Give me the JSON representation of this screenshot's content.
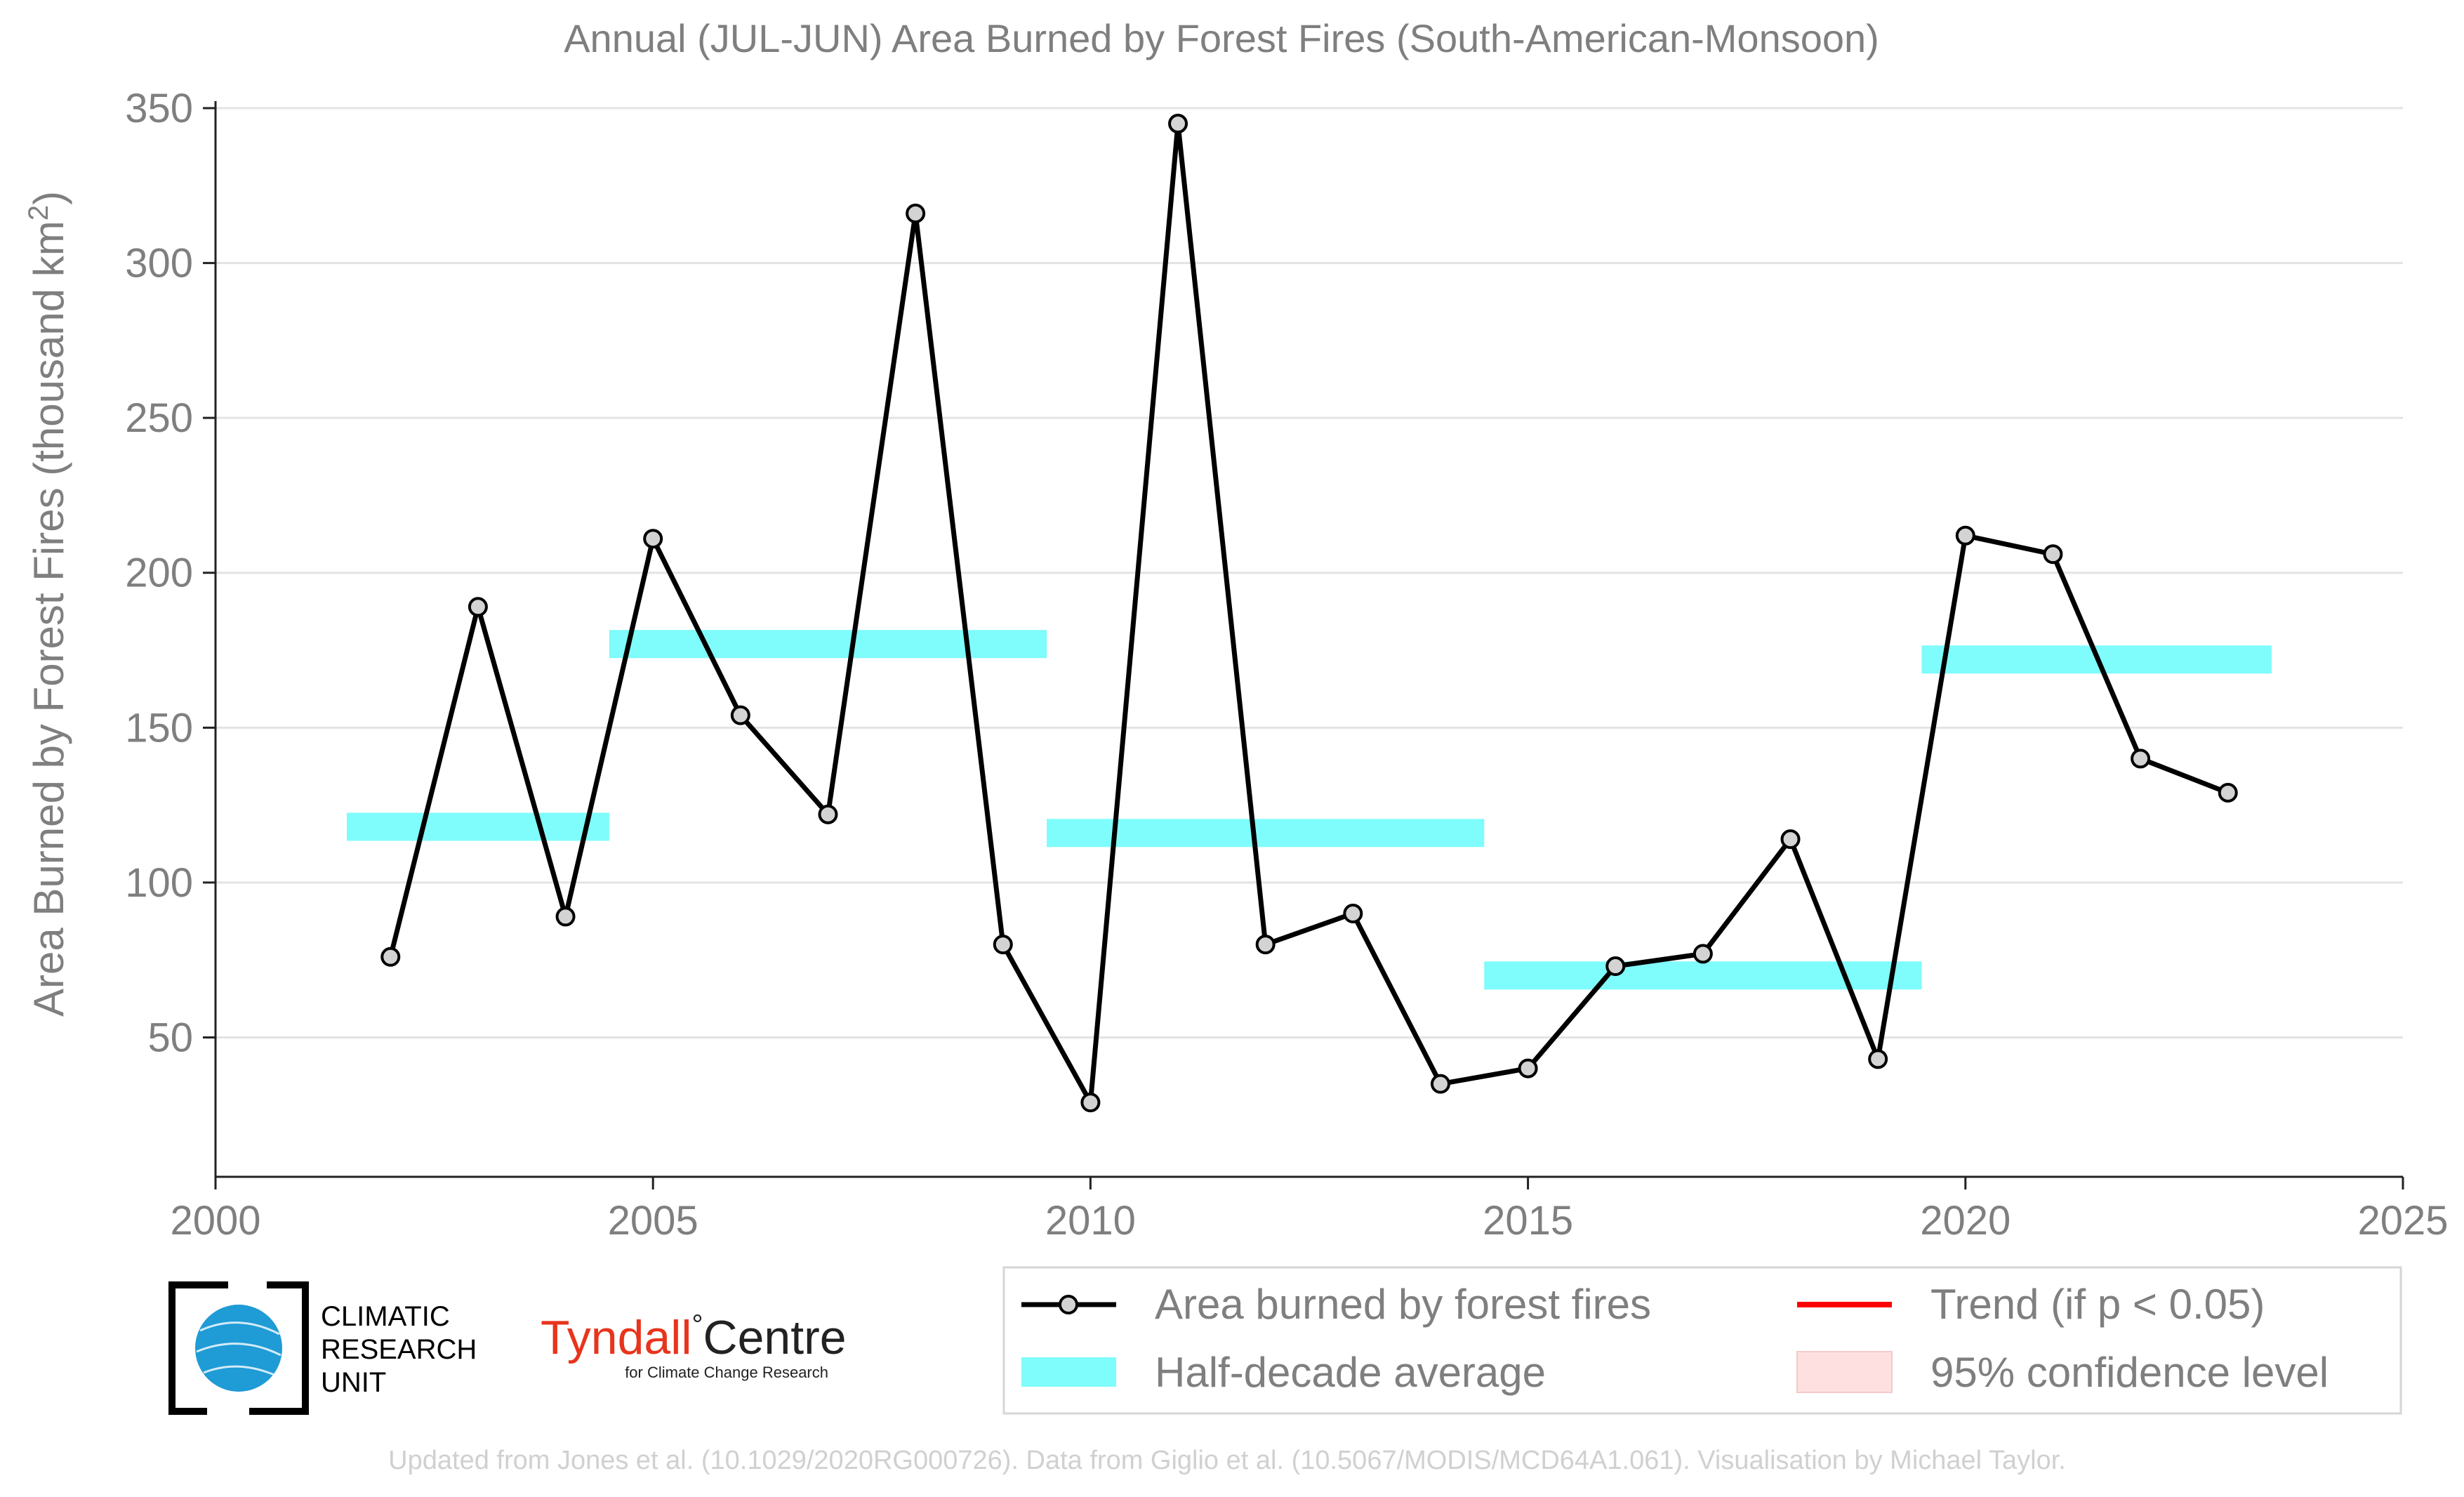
{
  "chart_data": {
    "type": "line",
    "title": "Annual (JUL-JUN) Area Burned by Forest Fires (South-American-Monsoon)",
    "ylabel": "Area Burned by Forest Fires (thousand km²)",
    "xlabel": "",
    "xlim": [
      2000,
      2025
    ],
    "ylim": [
      5,
      350
    ],
    "x_ticks": [
      2000,
      2005,
      2010,
      2015,
      2020,
      2025
    ],
    "y_ticks": [
      50,
      100,
      150,
      200,
      250,
      300,
      350
    ],
    "grid": "horizontal",
    "legend_position": "bottom-right",
    "series": [
      {
        "name": "Area burned by forest fires",
        "color": "#000000",
        "marker_color": "#d3d3d3",
        "x": [
          2002,
          2003,
          2004,
          2005,
          2006,
          2007,
          2008,
          2009,
          2010,
          2011,
          2012,
          2013,
          2014,
          2015,
          2016,
          2017,
          2018,
          2019,
          2020,
          2021,
          2022,
          2023
        ],
        "y": [
          76,
          189,
          89,
          211,
          154,
          122,
          316,
          80,
          29,
          345,
          80,
          90,
          35,
          40,
          73,
          77,
          114,
          43,
          212,
          206,
          140,
          129
        ]
      }
    ],
    "half_decade_average": {
      "name": "Half-decade average",
      "color": "#7ffcfc",
      "segments": [
        {
          "x_start": 2001.5,
          "x_end": 2004.5,
          "value": 118
        },
        {
          "x_start": 2004.5,
          "x_end": 2009.5,
          "value": 177
        },
        {
          "x_start": 2009.5,
          "x_end": 2014.5,
          "value": 116
        },
        {
          "x_start": 2014.5,
          "x_end": 2019.5,
          "value": 70
        },
        {
          "x_start": 2019.5,
          "x_end": 2023.5,
          "value": 172
        }
      ]
    },
    "legend": [
      {
        "label": "Area burned by forest fires",
        "kind": "line-marker",
        "color": "#000000"
      },
      {
        "label": "Trend (if p < 0.05)",
        "kind": "line",
        "color": "#ff0000"
      },
      {
        "label": "Half-decade average",
        "kind": "band",
        "color": "#7ffcfc"
      },
      {
        "label": "95% confidence level",
        "kind": "patch",
        "color": "#ffe0e0"
      }
    ]
  },
  "footer": {
    "credits": "Updated from Jones et al. (10.1029/2020RG000726). Data from Giglio et al. (10.5067/MODIS/MCD64A1.061). Visualisation by Michael Taylor."
  },
  "logos": {
    "cru_lines": [
      "CLIMATIC",
      "RESEARCH",
      "UNIT"
    ],
    "tyndall_main": "Tyndall",
    "tyndall_degree": "°",
    "tyndall_centre": "Centre",
    "tyndall_sub": "for Climate Change Research"
  }
}
